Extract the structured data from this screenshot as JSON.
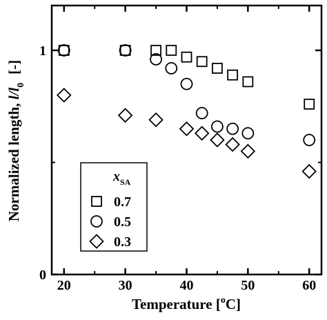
{
  "chart_data": {
    "type": "scatter",
    "xlabel": "Temperature [°C]",
    "xlabel_parts": {
      "main": "Temperature [",
      "sup": "o",
      "unit": "C]"
    },
    "ylabel": "Normalized length, l/l0 [-]",
    "ylabel_parts": {
      "main": "Normalized length, ",
      "italic": "l/l",
      "sub": "0",
      "unit": "[-]"
    },
    "xlim": [
      18,
      62
    ],
    "ylim": [
      0,
      1.2
    ],
    "xticks": [
      20,
      30,
      40,
      50,
      60
    ],
    "yticks": [
      0,
      1
    ],
    "grid": false,
    "legend_position": "bottom-left",
    "legend_title": {
      "italic": "x",
      "sub": "SA"
    },
    "series": [
      {
        "name": "0.7",
        "marker": "square",
        "x": [
          20,
          30,
          35,
          37.5,
          40,
          42.5,
          45,
          47.5,
          50,
          60
        ],
        "y": [
          1.0,
          1.0,
          1.0,
          1.0,
          0.97,
          0.95,
          0.92,
          0.89,
          0.86,
          0.76
        ]
      },
      {
        "name": "0.5",
        "marker": "circle",
        "x": [
          20,
          30,
          35,
          37.5,
          40,
          42.5,
          45,
          47.5,
          50,
          60
        ],
        "y": [
          1.0,
          1.0,
          0.96,
          0.92,
          0.85,
          0.72,
          0.66,
          0.65,
          0.63,
          0.6
        ]
      },
      {
        "name": "0.3",
        "marker": "diamond",
        "x": [
          20,
          30,
          35,
          40,
          42.5,
          45,
          47.5,
          50,
          60
        ],
        "y": [
          0.8,
          0.71,
          0.69,
          0.65,
          0.63,
          0.6,
          0.58,
          0.55,
          0.46
        ]
      }
    ]
  }
}
